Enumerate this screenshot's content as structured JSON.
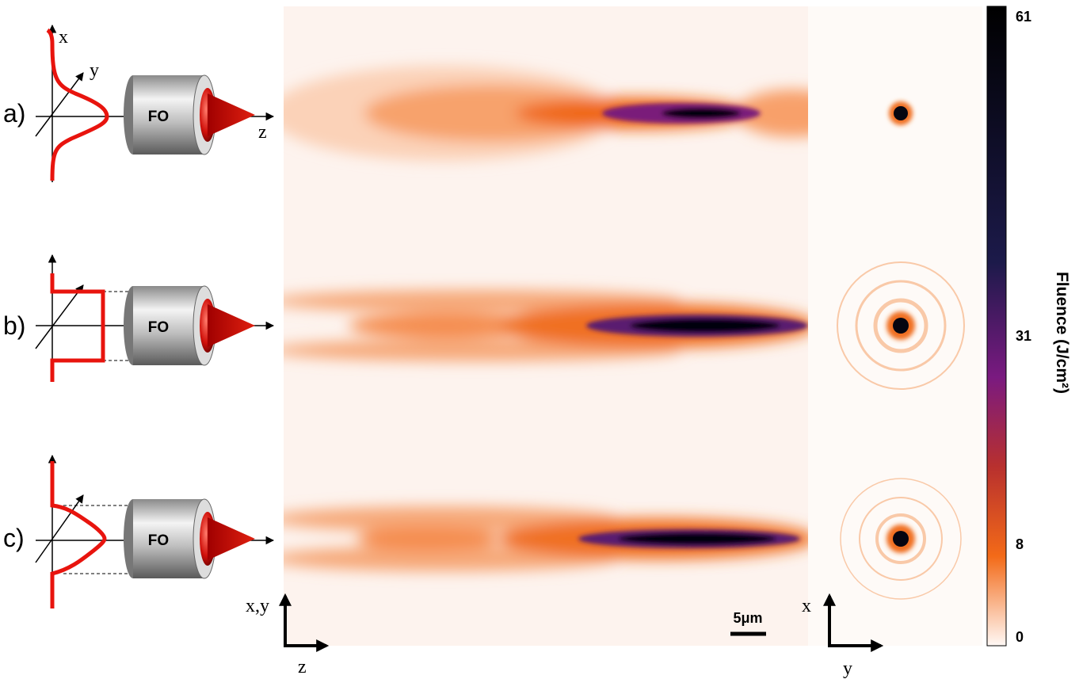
{
  "panels": [
    {
      "label": "a)",
      "objective": "FO",
      "axis_x": "x",
      "axis_y": "y",
      "axis_z": "z"
    },
    {
      "label": "b)",
      "objective": "FO"
    },
    {
      "label": "c)",
      "objective": "FO"
    }
  ],
  "bottom": {
    "side_axis": "x,y",
    "long_axis": "z",
    "scale_bar": "5μm",
    "spot_x": "x",
    "spot_y": "y"
  },
  "colorbar": {
    "title": "Fluence (J/cm²)",
    "ticks": [
      "61",
      "31",
      "8",
      "0"
    ]
  }
}
